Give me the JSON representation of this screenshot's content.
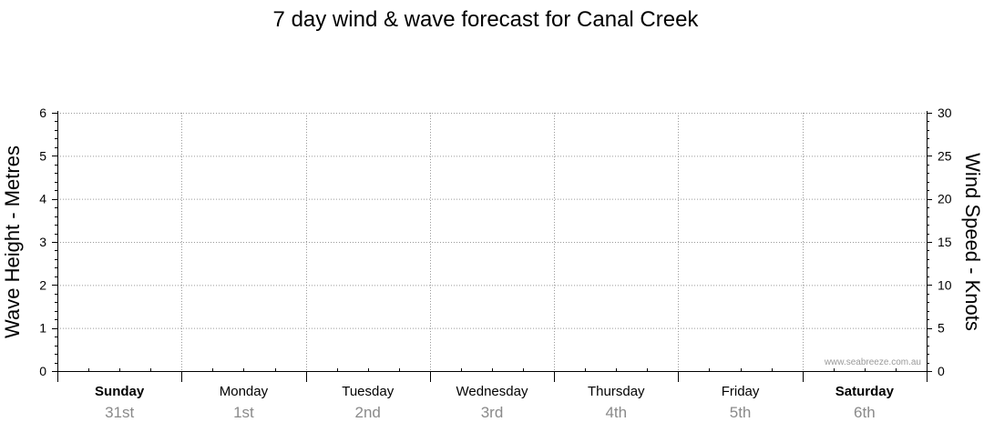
{
  "chart_data": {
    "type": "line",
    "title": "7 day wind & wave forecast for Canal Creek",
    "ylabel_left": "Wave Height - Metres",
    "ylabel_right": "Wind Speed - Knots",
    "ylim_left": [
      0,
      6
    ],
    "ylim_right": [
      0,
      30
    ],
    "yticks_left": [
      "0",
      "1",
      "2",
      "3",
      "4",
      "5",
      "6"
    ],
    "yticks_right": [
      "0",
      "5",
      "10",
      "15",
      "20",
      "25",
      "30"
    ],
    "days": [
      {
        "name": "Sunday",
        "date": "31st",
        "bold": true
      },
      {
        "name": "Monday",
        "date": "1st",
        "bold": false
      },
      {
        "name": "Tuesday",
        "date": "2nd",
        "bold": false
      },
      {
        "name": "Wednesday",
        "date": "3rd",
        "bold": false
      },
      {
        "name": "Thursday",
        "date": "4th",
        "bold": false
      },
      {
        "name": "Friday",
        "date": "5th",
        "bold": false
      },
      {
        "name": "Saturday",
        "date": "6th",
        "bold": true
      }
    ],
    "series": [],
    "grid": true,
    "watermark": "www.seabreeze.com.au",
    "colors": {
      "grid": "#9a9a9a",
      "axis": "#000000",
      "date_text": "#8a8a8a",
      "watermark": "#9a9a9a"
    }
  }
}
